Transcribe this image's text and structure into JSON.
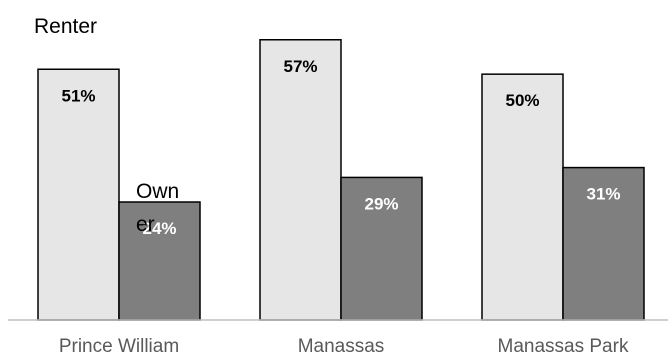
{
  "chart_data": {
    "type": "bar",
    "categories": [
      "Prince William",
      "Manassas",
      "Manassas Park"
    ],
    "series": [
      {
        "name": "Renter",
        "values": [
          51,
          57,
          50
        ],
        "labels": [
          "51%",
          "57%",
          "50%"
        ],
        "color": "#e6e6e6",
        "label_color": "#000000"
      },
      {
        "name": "Owner",
        "values": [
          24,
          29,
          31
        ],
        "labels": [
          "24%",
          "29%",
          "31%"
        ],
        "color": "#7f7f7f",
        "label_color": "#ffffff"
      }
    ],
    "legend": {
      "renter": "Renter",
      "owner_line1": "Own",
      "owner_line2": "er"
    },
    "ylim": [
      0,
      60
    ],
    "grid": false,
    "axis_color": "#bfbfbf",
    "bar_stroke": "#000000"
  }
}
